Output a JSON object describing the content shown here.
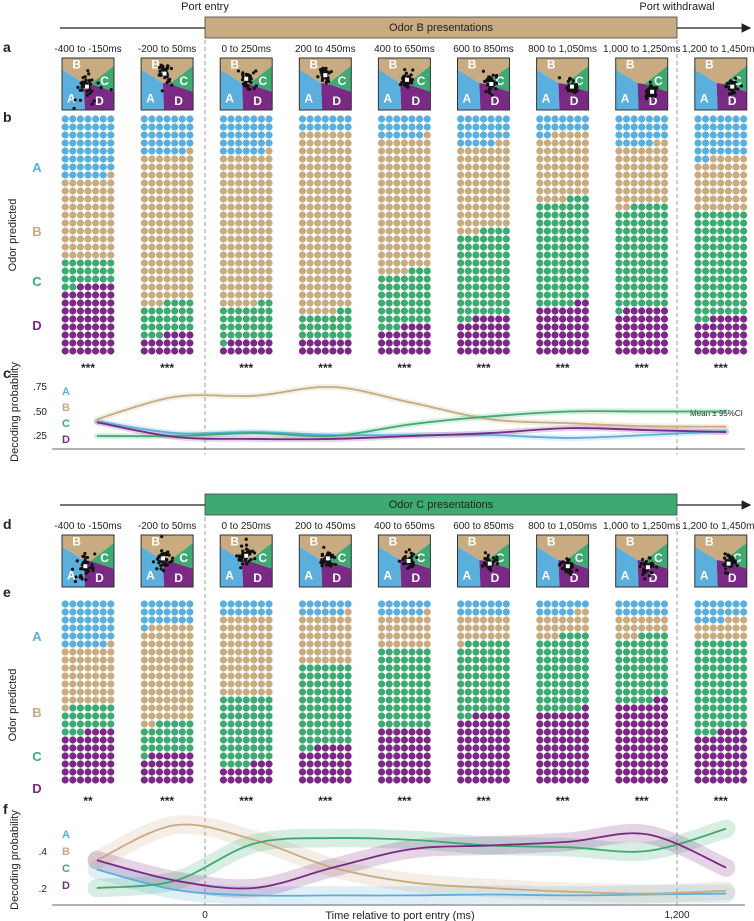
{
  "colors": {
    "A": "#5aafdc",
    "B": "#c8ab80",
    "C": "#3daa72",
    "D": "#7a2a84"
  },
  "odors": [
    "A",
    "B",
    "C",
    "D"
  ],
  "windows": [
    "-400 to -150ms",
    "-200 to 50ms",
    "0 to 250ms",
    "200 to 450ms",
    "400 to 650ms",
    "600 to 850ms",
    "800 to 1,050ms",
    "1,000 to 1,250ms",
    "1,200 to 1,450ms"
  ],
  "timeline": {
    "port_entry": "Port entry",
    "port_withdrawal": "Port withdrawal",
    "odor_b_box": "Odor B presentations",
    "odor_c_box": "Odor C presentations"
  },
  "panel_letters": {
    "a": "a",
    "b": "b",
    "c": "c",
    "d": "d",
    "e": "e",
    "f": "f"
  },
  "odor_predicted": "Odor predicted",
  "panel_b": {
    "counts_ABCD": [
      [
        55,
        71,
        23,
        61
      ],
      [
        34,
        130,
        28,
        18
      ],
      [
        34,
        132,
        31,
        13
      ],
      [
        14,
        159,
        23,
        14
      ],
      [
        20,
        117,
        48,
        25
      ],
      [
        26,
        75,
        76,
        33
      ],
      [
        16,
        58,
        92,
        44
      ],
      [
        26,
        53,
        90,
        41
      ],
      [
        37,
        47,
        93,
        33
      ]
    ],
    "significance": [
      "***",
      "***",
      "***",
      "***",
      "***",
      "***",
      "***",
      "***",
      "***"
    ]
  },
  "panel_e": {
    "counts_ABCD": [
      [
        41,
        51,
        23,
        46
      ],
      [
        22,
        85,
        27,
        27
      ],
      [
        14,
        70,
        60,
        17
      ],
      [
        13,
        43,
        72,
        33
      ],
      [
        13,
        29,
        70,
        49
      ],
      [
        14,
        22,
        64,
        61
      ],
      [
        12,
        19,
        66,
        64
      ],
      [
        14,
        17,
        58,
        72
      ],
      [
        18,
        17,
        80,
        46
      ]
    ],
    "significance": [
      "**",
      "***",
      "***",
      "***",
      "***",
      "***",
      "***",
      "***",
      "***"
    ]
  },
  "chart_data": [
    {
      "type": "line",
      "panel": "c",
      "ylabel": "Decoding probability",
      "yticks": [
        ".25",
        ".50",
        ".75"
      ],
      "ylim": [
        0.2,
        0.8
      ],
      "xlim": [
        -320,
        1380
      ],
      "annotation": "Mean ± 95%CI",
      "x": [
        -275,
        -75,
        125,
        325,
        525,
        725,
        925,
        1125,
        1325
      ],
      "ci_halfwidth": 0.03,
      "series": [
        {
          "name": "A",
          "values": [
            0.39,
            0.27,
            0.28,
            0.25,
            0.25,
            0.25,
            0.22,
            0.25,
            0.29
          ]
        },
        {
          "name": "B",
          "values": [
            0.41,
            0.64,
            0.65,
            0.74,
            0.58,
            0.41,
            0.37,
            0.34,
            0.335
          ]
        },
        {
          "name": "C",
          "values": [
            0.24,
            0.24,
            0.27,
            0.24,
            0.36,
            0.44,
            0.49,
            0.49,
            0.49
          ]
        },
        {
          "name": "D",
          "values": [
            0.38,
            0.23,
            0.21,
            0.21,
            0.24,
            0.27,
            0.32,
            0.3,
            0.28
          ]
        }
      ]
    },
    {
      "type": "line",
      "panel": "f",
      "ylabel": "Decoding probability",
      "xlabel": "Time relative to port entry (ms)",
      "yticks": [
        ".2",
        ".4"
      ],
      "xticks": [
        "0",
        "1,200"
      ],
      "ylim": [
        0.1,
        0.6
      ],
      "xlim": [
        -320,
        1380
      ],
      "x": [
        -275,
        -75,
        125,
        325,
        525,
        725,
        925,
        1125,
        1325
      ],
      "ci_halfwidth": 0.05,
      "series": [
        {
          "name": "A",
          "values": [
            0.3,
            0.19,
            0.16,
            0.16,
            0.16,
            0.165,
            0.16,
            0.165,
            0.17
          ]
        },
        {
          "name": "B",
          "values": [
            0.35,
            0.54,
            0.46,
            0.31,
            0.23,
            0.2,
            0.18,
            0.17,
            0.185
          ]
        },
        {
          "name": "C",
          "values": [
            0.2,
            0.24,
            0.44,
            0.47,
            0.46,
            0.43,
            0.42,
            0.4,
            0.52
          ]
        },
        {
          "name": "D",
          "values": [
            0.35,
            0.24,
            0.2,
            0.31,
            0.41,
            0.43,
            0.45,
            0.49,
            0.31
          ]
        }
      ]
    }
  ]
}
